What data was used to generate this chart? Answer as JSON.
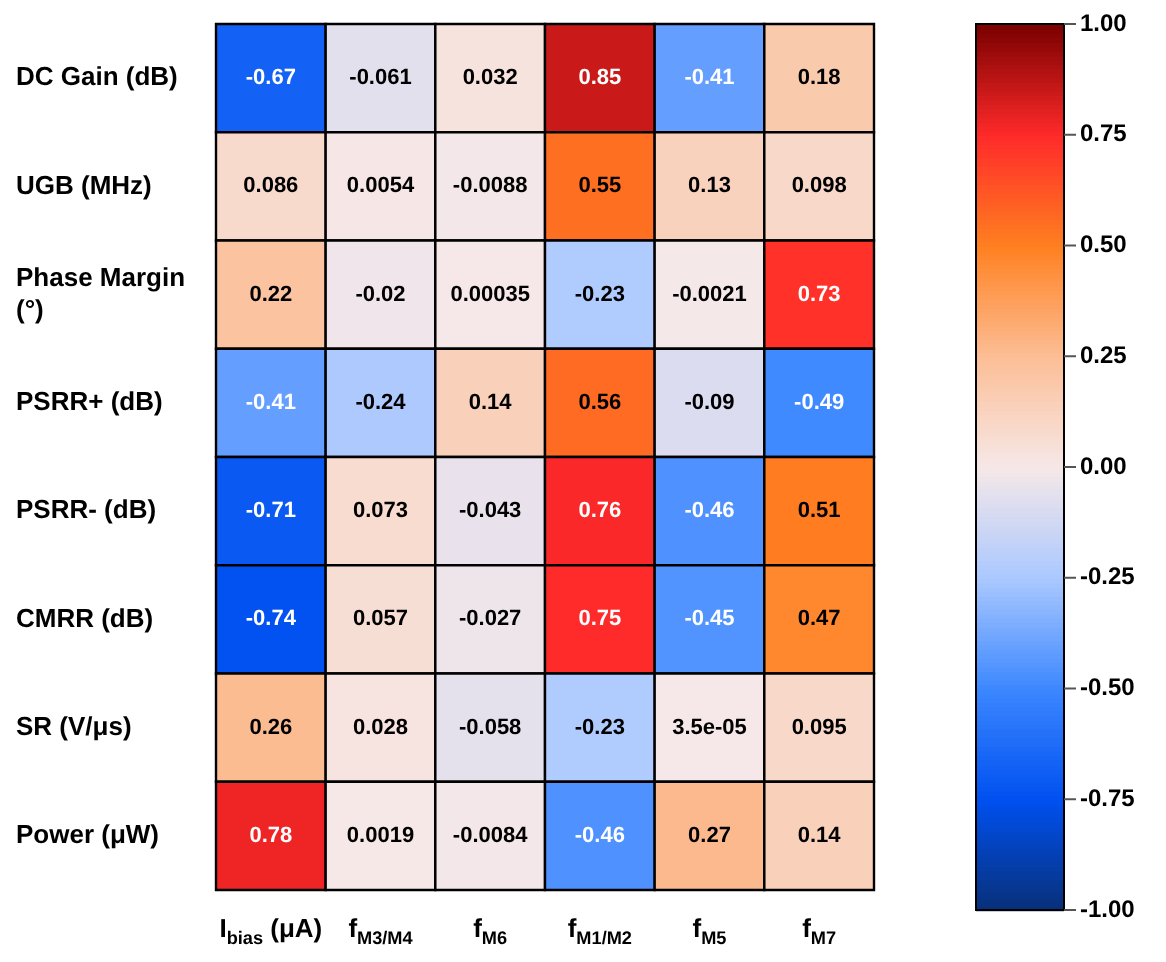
{
  "chart_data": {
    "type": "heatmap",
    "categories": [
      "I$_{bias}$ (μA)",
      "f$_{M3/M4}$",
      "f$_{M6}$",
      "f$_{M1/M2}$",
      "f$_{M5}$",
      "f$_{M7}$"
    ],
    "y_categories": [
      "DC Gain (dB)",
      "UGB (MHz)",
      "Phase Margin (°)",
      "PSRR+ (dB)",
      "PSRR- (dB)",
      "CMRR (dB)",
      "SR (V/μs)",
      "Power (μW)"
    ],
    "cells": [
      [
        -0.67,
        -0.061,
        0.032,
        0.85,
        -0.41,
        0.18
      ],
      [
        0.086,
        0.0054,
        -0.0088,
        0.55,
        0.13,
        0.098
      ],
      [
        0.22,
        -0.02,
        0.00035,
        -0.23,
        -0.0021,
        0.73
      ],
      [
        -0.41,
        -0.24,
        0.14,
        0.56,
        -0.09,
        -0.49
      ],
      [
        -0.71,
        0.073,
        -0.043,
        0.76,
        -0.46,
        0.51
      ],
      [
        -0.74,
        0.057,
        -0.027,
        0.75,
        -0.45,
        0.47
      ],
      [
        0.26,
        0.028,
        -0.058,
        -0.23,
        3.5e-05,
        0.095
      ],
      [
        0.78,
        0.0019,
        -0.0084,
        -0.46,
        0.27,
        0.14
      ]
    ],
    "cell_labels": [
      [
        "-0.67",
        "-0.061",
        "0.032",
        "0.85",
        "-0.41",
        "0.18"
      ],
      [
        "0.086",
        "0.0054",
        "-0.0088",
        "0.55",
        "0.13",
        "0.098"
      ],
      [
        "0.22",
        "-0.02",
        "0.00035",
        "-0.23",
        "-0.0021",
        "0.73"
      ],
      [
        "-0.41",
        "-0.24",
        "0.14",
        "0.56",
        "-0.09",
        "-0.49"
      ],
      [
        "-0.71",
        "0.073",
        "-0.043",
        "0.76",
        "-0.46",
        "0.51"
      ],
      [
        "-0.74",
        "0.057",
        "-0.027",
        "0.75",
        "-0.45",
        "0.47"
      ],
      [
        "0.26",
        "0.028",
        "-0.058",
        "-0.23",
        "3.5e-05",
        "0.095"
      ],
      [
        "0.78",
        "0.0019",
        "-0.0084",
        "-0.46",
        "0.27",
        "0.14"
      ]
    ],
    "data_labels": true,
    "clim": [
      -1,
      1
    ],
    "cticks": [
      {
        "value": 1,
        "label": "1.00"
      },
      {
        "value": 0.75,
        "label": "0.75"
      },
      {
        "value": 0.5,
        "label": "0.50"
      },
      {
        "value": 0.25,
        "label": "0.25"
      },
      {
        "value": 0,
        "label": "0.00"
      },
      {
        "value": -0.25,
        "label": "-0.25"
      },
      {
        "value": -0.5,
        "label": "-0.50"
      },
      {
        "value": -0.75,
        "label": "-0.75"
      },
      {
        "value": -1,
        "label": "-1.00"
      }
    ]
  }
}
